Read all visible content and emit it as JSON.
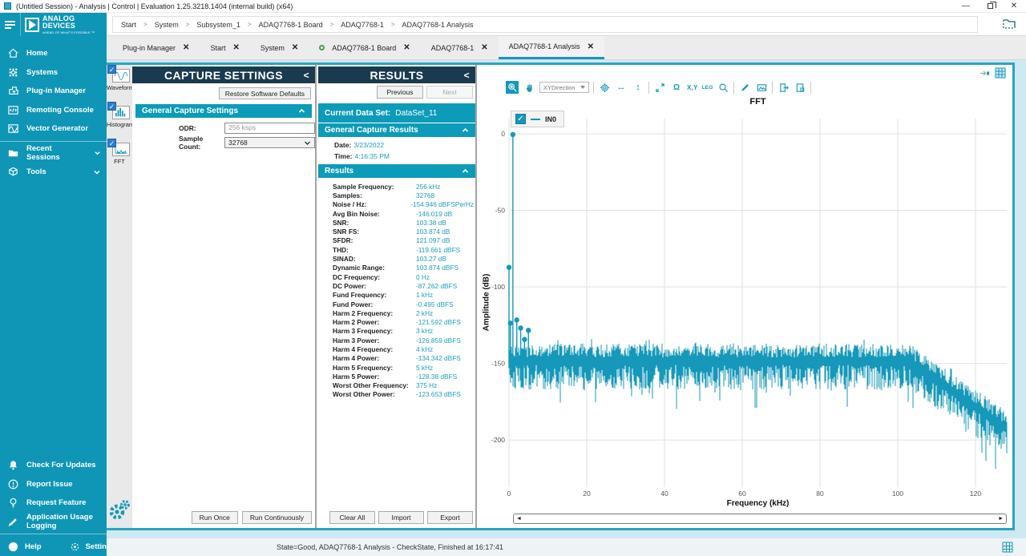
{
  "window": {
    "title": "(Untitled Session) - Analysis | Control | Evaluation 1.25.3218.1404 (internal build) (x64)"
  },
  "brand": {
    "name_line1": "ANALOG",
    "name_line2": "DEVICES",
    "tagline": "AHEAD OF WHAT'S POSSIBLE ™"
  },
  "breadcrumb": [
    "Start",
    "System",
    "Subsystem_1",
    "ADAQ7768-1 Board",
    "ADAQ7768-1",
    "ADAQ7768-1 Analysis"
  ],
  "tabs": [
    {
      "label": "Plug-in Manager",
      "dot": false,
      "active": false
    },
    {
      "label": "Start",
      "dot": false,
      "active": false
    },
    {
      "label": "System",
      "dot": false,
      "active": false
    },
    {
      "label": "ADAQ7768-1 Board",
      "dot": true,
      "active": false
    },
    {
      "label": "ADAQ7768-1",
      "dot": false,
      "active": false
    },
    {
      "label": "ADAQ7768-1 Analysis",
      "dot": false,
      "active": true
    }
  ],
  "sidebar": {
    "items": [
      {
        "icon": "home-icon",
        "label": "Home"
      },
      {
        "icon": "systems-icon",
        "label": "Systems"
      },
      {
        "icon": "plugin-manager-icon",
        "label": "Plug-in Manager"
      },
      {
        "icon": "remoting-console-icon",
        "label": "Remoting Console"
      },
      {
        "icon": "vector-generator-icon",
        "label": "Vector Generator"
      },
      {
        "icon": "recent-sessions-icon",
        "label": "Recent Sessions",
        "chevron": true
      },
      {
        "icon": "tools-icon",
        "label": "Tools",
        "chevron": true
      }
    ],
    "bottom_items": [
      {
        "icon": "check-updates-icon",
        "label": "Check For Updates"
      },
      {
        "icon": "report-issue-icon",
        "label": "Report Issue"
      },
      {
        "icon": "request-feature-icon",
        "label": "Request Feature"
      },
      {
        "icon": "usage-logging-icon",
        "label": "Application Usage Logging"
      }
    ],
    "help_label": "Help",
    "settings_label": "Settings"
  },
  "view_rail": {
    "items": [
      {
        "icon": "waveform-icon",
        "label": "Waveform",
        "checked": true
      },
      {
        "icon": "histogram-icon",
        "label": "Histogram",
        "checked": true
      },
      {
        "icon": "fft-icon",
        "label": "FFT",
        "checked": true
      }
    ]
  },
  "capture_settings": {
    "title": "CAPTURE SETTINGS",
    "collapse_glyph": "<",
    "restore_defaults_label": "Restore Software Defaults",
    "general_section_label": "General Capture Settings",
    "odr_label": "ODR:",
    "odr_value": "256 ksps",
    "sample_count_label": "Sample Count:",
    "sample_count_value": "32768",
    "run_once_label": "Run Once",
    "run_continuously_label": "Run Continuously"
  },
  "results": {
    "title": "RESULTS",
    "collapse_glyph": "<",
    "previous_label": "Previous",
    "next_label": "Next",
    "current_data_set_label": "Current Data Set:",
    "current_data_set_value": "DataSet_11",
    "general_section_label": "General Capture Results",
    "date_label": "Date:",
    "date_value": "3/23/2022",
    "time_label": "Time:",
    "time_value": "4:16:35 PM",
    "results_section_label": "Results",
    "rows": [
      {
        "label": "Sample Frequency:",
        "value": "256 kHz"
      },
      {
        "label": "Samples:",
        "value": "32768"
      },
      {
        "label": "Noise / Hz:",
        "value": "-154.946 dBFSPerHz"
      },
      {
        "label": "Avg Bin Noise:",
        "value": "-146.019 dB"
      },
      {
        "label": "SNR:",
        "value": "103.38 dB"
      },
      {
        "label": "SNR FS:",
        "value": "103.874 dB"
      },
      {
        "label": "SFDR:",
        "value": "121.097 dB"
      },
      {
        "label": "THD:",
        "value": "-119.661 dBFS"
      },
      {
        "label": "SINAD:",
        "value": "103.27 dB"
      },
      {
        "label": "Dynamic Range:",
        "value": "103.874 dBFS"
      },
      {
        "label": "DC Frequency:",
        "value": "0 Hz"
      },
      {
        "label": "DC Power:",
        "value": "-87.262 dBFS"
      },
      {
        "label": "Fund Frequency:",
        "value": "1 kHz"
      },
      {
        "label": "Fund Power:",
        "value": "-0.495 dBFS"
      },
      {
        "label": "Harm 2 Frequency:",
        "value": "2 kHz"
      },
      {
        "label": "Harm 2 Power:",
        "value": "-121.592 dBFS"
      },
      {
        "label": "Harm 3 Frequency:",
        "value": "3 kHz"
      },
      {
        "label": "Harm 3 Power:",
        "value": "-126.859 dBFS"
      },
      {
        "label": "Harm 4 Frequency:",
        "value": "4 kHz"
      },
      {
        "label": "Harm 4 Power:",
        "value": "-134.342 dBFS"
      },
      {
        "label": "Harm 5 Frequency:",
        "value": "5 kHz"
      },
      {
        "label": "Harm 5 Power:",
        "value": "-128.38 dBFS"
      },
      {
        "label": "Worst Other Frequency:",
        "value": "375 Hz"
      },
      {
        "label": "Worst Other Power:",
        "value": "-123.653 dBFS"
      }
    ],
    "clear_all_label": "Clear All",
    "import_label": "Import",
    "export_label": "Export"
  },
  "chart_toolbar": {
    "xy_direction_label": "XYDirection",
    "xy_label": "X,Y",
    "legend_label": "LEG",
    "undo_zoom_glyph": "Ω",
    "h_arrow_glyph": "↔",
    "v_arrow_glyph": "↕"
  },
  "chart_data": {
    "type": "line",
    "title": "FFT",
    "xlabel": "Frequency (kHz)",
    "ylabel": "Amplitude (dB)",
    "xlim": [
      0,
      128
    ],
    "ylim": [
      -230,
      10
    ],
    "x_ticks": [
      0,
      20,
      40,
      60,
      80,
      100,
      120
    ],
    "y_ticks": [
      0,
      -50,
      -100,
      -150,
      -200
    ],
    "grid": true,
    "legend_position": "top-left",
    "legend": [
      {
        "name": "IN0",
        "color": "#1598BA",
        "checked": true
      }
    ],
    "peaks": [
      {
        "name": "dc",
        "freq_khz": 0,
        "db": -87.262
      },
      {
        "name": "worst-other",
        "freq_khz": 0.375,
        "db": -123.653
      },
      {
        "name": "fundamental",
        "freq_khz": 1,
        "db": -0.495
      },
      {
        "name": "harm-2",
        "freq_khz": 2,
        "db": -121.592
      },
      {
        "name": "harm-3",
        "freq_khz": 3,
        "db": -126.859
      },
      {
        "name": "harm-4",
        "freq_khz": 4,
        "db": -134.342
      },
      {
        "name": "harm-5",
        "freq_khz": 5,
        "db": -128.38
      }
    ],
    "noise_floor": {
      "mean_db": -149,
      "top_spread_db": 9,
      "bottom_spread_db": 16,
      "rolloff_start_khz": 103,
      "end_mean_db": -193,
      "nyquist_khz": 128
    }
  },
  "status_bar": {
    "text": "State=Good, ADAQ7768-1 Analysis - CheckState, Finished at 16:17:41"
  },
  "colors": {
    "accent": "#1598BA",
    "sidebar": "#0F96B6",
    "panel_header": "#1A3A50",
    "section_bar": "#0C9BB8",
    "value_text": "#1B9DBE",
    "checkbox_blue": "#2B7CD3",
    "tab_ok_green": "#3FA142",
    "series": "#1598BA"
  }
}
